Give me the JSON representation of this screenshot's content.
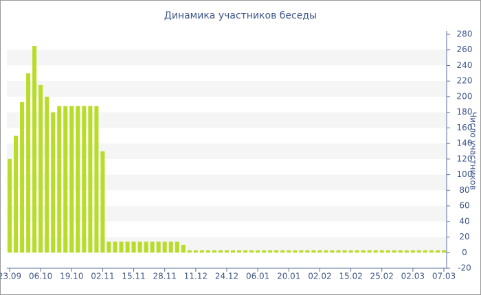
{
  "chart_data": {
    "type": "bar",
    "title": "Динамика участников беседы",
    "y_axis_label": "Число участников",
    "categories": [
      "23.09",
      null,
      null,
      null,
      null,
      "06.10",
      null,
      null,
      null,
      null,
      "19.10",
      null,
      null,
      null,
      null,
      "02.11",
      null,
      null,
      null,
      null,
      "15.11",
      null,
      null,
      null,
      null,
      "28.11",
      null,
      null,
      null,
      null,
      "11.12",
      null,
      null,
      null,
      null,
      "24.12",
      null,
      null,
      null,
      null,
      "06.01",
      null,
      null,
      null,
      null,
      "20.01",
      null,
      null,
      null,
      null,
      "02.02",
      null,
      null,
      null,
      null,
      "15.02",
      null,
      null,
      null,
      null,
      "25.02",
      null,
      null,
      null,
      null,
      "02.03",
      null,
      null,
      null,
      null,
      "07.03"
    ],
    "values": [
      120,
      150,
      193,
      230,
      265,
      215,
      200,
      180,
      188,
      188,
      188,
      188,
      188,
      188,
      188,
      130,
      14,
      14,
      14,
      14,
      14,
      14,
      14,
      14,
      14,
      14,
      14,
      14,
      10,
      3,
      3,
      3,
      3,
      3,
      3,
      3,
      3,
      3,
      3,
      3,
      3,
      3,
      3,
      3,
      3,
      3,
      3,
      3,
      3,
      3,
      3,
      3,
      3,
      3,
      3,
      3,
      3,
      3,
      3,
      3,
      3,
      3,
      3,
      3,
      3,
      3,
      3,
      3,
      3,
      3,
      3
    ],
    "color": "#b8dc28",
    "ylim": [
      -20,
      280
    ],
    "yticks": [
      -20,
      0,
      20,
      40,
      60,
      80,
      100,
      120,
      140,
      160,
      180,
      200,
      220,
      240,
      260,
      280
    ],
    "grid": "bands",
    "y_axis_side": "right"
  }
}
